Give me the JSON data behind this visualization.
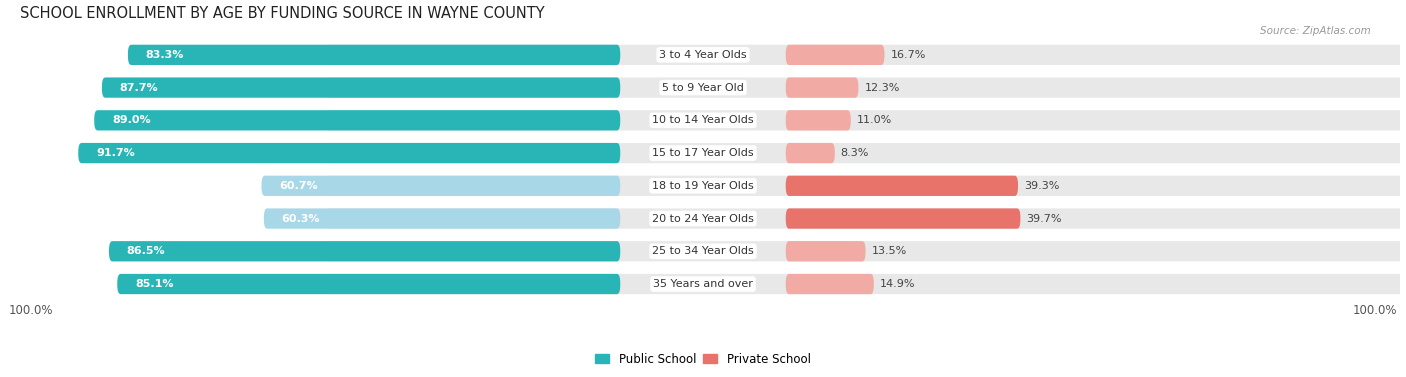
{
  "title": "SCHOOL ENROLLMENT BY AGE BY FUNDING SOURCE IN WAYNE COUNTY",
  "source": "Source: ZipAtlas.com",
  "categories": [
    "3 to 4 Year Olds",
    "5 to 9 Year Old",
    "10 to 14 Year Olds",
    "15 to 17 Year Olds",
    "18 to 19 Year Olds",
    "20 to 24 Year Olds",
    "25 to 34 Year Olds",
    "35 Years and over"
  ],
  "public_values": [
    83.3,
    87.7,
    89.0,
    91.7,
    60.7,
    60.3,
    86.5,
    85.1
  ],
  "private_values": [
    16.7,
    12.3,
    11.0,
    8.3,
    39.3,
    39.7,
    13.5,
    14.9
  ],
  "public_labels": [
    "83.3%",
    "87.7%",
    "89.0%",
    "91.7%",
    "60.7%",
    "60.3%",
    "86.5%",
    "85.1%"
  ],
  "private_labels": [
    "16.7%",
    "12.3%",
    "11.0%",
    "8.3%",
    "39.3%",
    "39.7%",
    "13.5%",
    "14.9%"
  ],
  "public_color_strong": "#29b5b5",
  "public_color_light": "#a8d8e8",
  "private_color_strong": "#e8736a",
  "private_color_light": "#f2aaa4",
  "row_bg_color": "#e8e8e8",
  "strong_public_idx": [
    0,
    1,
    2,
    3,
    6,
    7
  ],
  "strong_private_idx": [
    4,
    5
  ],
  "axis_label_left": "100.0%",
  "axis_label_right": "100.0%",
  "legend_public": "Public School",
  "legend_private": "Private School",
  "title_fontsize": 10.5,
  "label_fontsize": 8.0,
  "cat_fontsize": 8.0,
  "tick_fontsize": 8.5,
  "source_fontsize": 7.5
}
